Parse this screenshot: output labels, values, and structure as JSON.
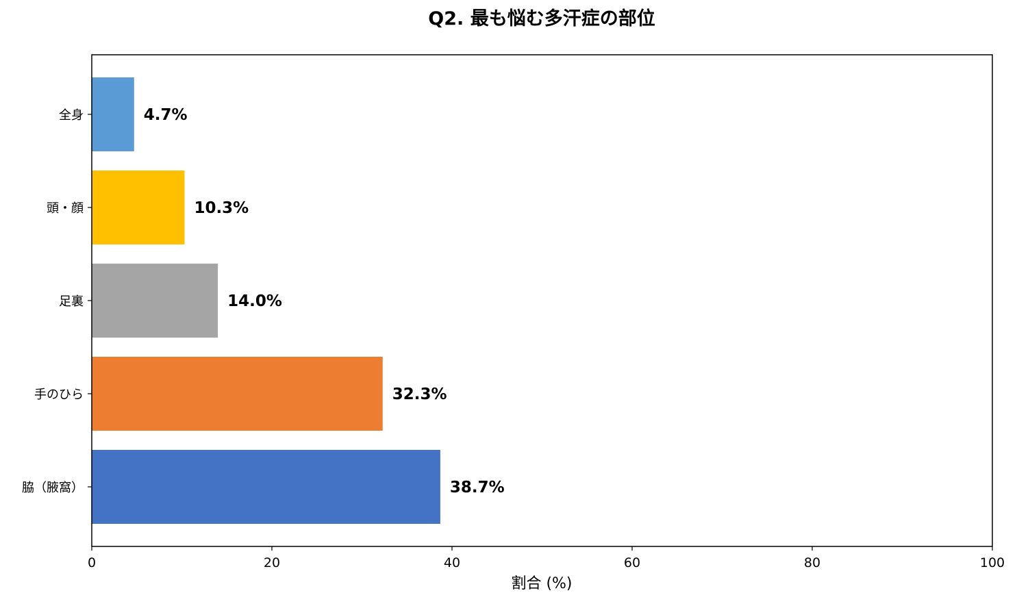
{
  "chart_data": {
    "type": "bar",
    "orientation": "horizontal",
    "title": "Q2. 最も悩む多汗症の部位",
    "xlabel": "割合 (%)",
    "ylabel": "",
    "xlim": [
      0,
      100
    ],
    "xticks": [
      0,
      20,
      40,
      60,
      80,
      100
    ],
    "categories": [
      "脇（腋窩）",
      "手のひら",
      "足裏",
      "頭・顔",
      "全身"
    ],
    "values": [
      38.7,
      32.3,
      14.0,
      10.3,
      4.7
    ],
    "value_labels": [
      "38.7%",
      "32.3%",
      "14.0%",
      "10.3%",
      "4.7%"
    ],
    "colors": [
      "#4472c4",
      "#ed7d31",
      "#a5a5a5",
      "#ffc000",
      "#5b9bd5"
    ],
    "grid": false,
    "legend": "none"
  }
}
